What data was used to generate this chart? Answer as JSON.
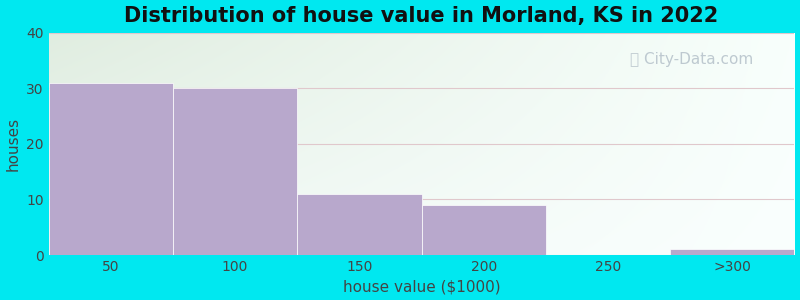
{
  "title": "Distribution of house value in Morland, KS in 2022",
  "xlabel": "house value ($1000)",
  "ylabel": "houses",
  "categories": [
    "50",
    "100",
    "150",
    "200",
    "250",
    ">300"
  ],
  "values": [
    31,
    30,
    11,
    9,
    0,
    1
  ],
  "bar_color": "#b8a8cc",
  "bar_edge_color": "#b8a8cc",
  "background_outer": "#00e8f0",
  "background_top_left": "#e0ede0",
  "background_top_right": "#f0f8f4",
  "background_bottom_left": "#f0f8f4",
  "background_bottom_right": "#fafffe",
  "grid_color": "#e0c8cc",
  "ylim": [
    0,
    40
  ],
  "yticks": [
    0,
    10,
    20,
    30,
    40
  ],
  "title_fontsize": 15,
  "label_fontsize": 11,
  "tick_fontsize": 10,
  "watermark_text": "City-Data.com",
  "watermark_color": "#b8c4cc",
  "watermark_fontsize": 11
}
